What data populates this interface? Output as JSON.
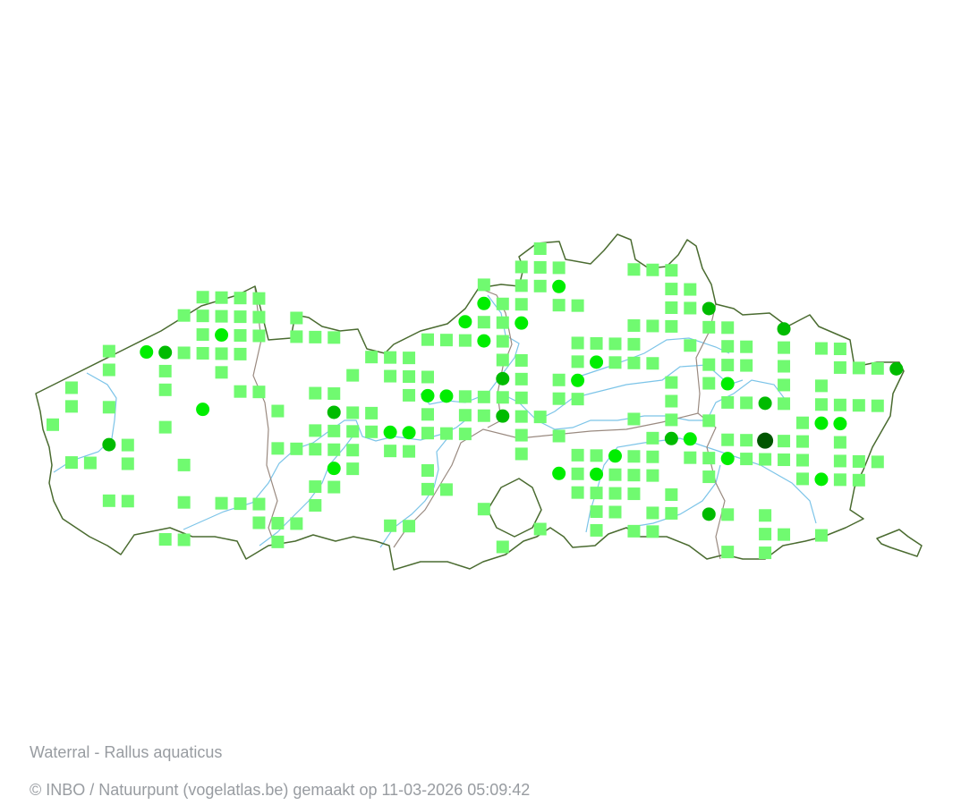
{
  "map": {
    "species_title": "Waterral - Rallus aquaticus",
    "credit": "© INBO / Natuurpunt (vogelatlas.be) gemaakt op 11-03-2026 05:09:42",
    "colors": {
      "square": "#70fa70",
      "circle_light": "#00ee00",
      "circle_mid": "#00bb00",
      "circle_dark": "#005500",
      "outer_border": "#4a6b30",
      "province_border": "#9a8a80",
      "river": "#7cc4e8"
    },
    "grid_observations": [
      {
        "row": 0,
        "square": [
          26
        ]
      },
      {
        "row": 1,
        "square": [
          25,
          26,
          27,
          31,
          32,
          33
        ]
      },
      {
        "row": 2,
        "square": [
          23,
          25,
          26,
          33,
          34
        ],
        "circle_light": [
          27
        ]
      },
      {
        "row": 3,
        "square": [
          8,
          9,
          10,
          11,
          24,
          25,
          27,
          28,
          33,
          34
        ],
        "circle_light": [
          23
        ],
        "circle_mid": [
          35
        ]
      },
      {
        "row": 4,
        "square": [
          7,
          8,
          9,
          10,
          11,
          13,
          23,
          24,
          31,
          32,
          33,
          35,
          36
        ],
        "circle_light": [
          22,
          25
        ],
        "circle_mid": [
          39
        ]
      },
      {
        "row": 5,
        "square": [
          8,
          10,
          11,
          13,
          14,
          15,
          20,
          21,
          22,
          24,
          28,
          29,
          30,
          31,
          34,
          36,
          37,
          39,
          41,
          42
        ],
        "circle_light": [
          9,
          23
        ]
      },
      {
        "row": 6,
        "square": [
          3,
          7,
          8,
          9,
          10,
          17,
          18,
          19,
          24,
          25,
          28,
          30,
          31,
          32,
          35,
          36,
          37,
          39,
          42,
          43,
          44
        ],
        "circle_light": [
          5,
          29
        ],
        "circle_mid": [
          6,
          45
        ]
      },
      {
        "row": 7,
        "square": [
          3,
          6,
          9,
          16,
          18,
          19,
          20,
          25,
          27,
          33,
          35,
          39,
          41
        ],
        "circle_light": [
          28,
          36
        ],
        "circle_mid": [
          24
        ]
      },
      {
        "row": 8,
        "square": [
          1,
          6,
          10,
          11,
          14,
          15,
          19,
          22,
          23,
          24,
          25,
          27,
          28,
          33,
          36,
          37,
          39,
          41,
          42,
          43,
          44
        ],
        "circle_light": [
          20,
          21
        ],
        "circle_mid": [
          38
        ]
      },
      {
        "row": 9,
        "square": [
          1,
          3,
          12,
          16,
          17,
          20,
          22,
          23,
          25,
          26,
          31,
          33,
          35,
          40
        ],
        "circle_light": [
          8,
          41,
          42
        ],
        "circle_mid": [
          15,
          24
        ]
      },
      {
        "row": 10,
        "square": [
          0,
          6,
          14,
          15,
          16,
          17,
          20,
          21,
          22,
          25,
          27,
          32,
          36,
          37,
          39,
          40,
          42
        ],
        "circle_light": [
          18,
          19,
          34
        ],
        "circle_mid": [
          33
        ],
        "circle_dark": [
          38
        ]
      },
      {
        "row": 11,
        "square": [
          4,
          12,
          13,
          14,
          15,
          16,
          18,
          19,
          25,
          28,
          29,
          31,
          32,
          34,
          35,
          37,
          38,
          39,
          40,
          42,
          43,
          44
        ],
        "circle_light": [
          30,
          36
        ],
        "circle_mid": [
          3
        ]
      },
      {
        "row": 12,
        "square": [
          1,
          2,
          4,
          7,
          16,
          20,
          28,
          30,
          31,
          32,
          35,
          40,
          42,
          43
        ],
        "circle_light": [
          15,
          27,
          29,
          41
        ]
      },
      {
        "row": 13,
        "square": [
          14,
          15,
          20,
          21,
          28,
          29,
          30,
          31,
          33
        ]
      },
      {
        "row": 14,
        "square": [
          3,
          4,
          7,
          9,
          10,
          11,
          14,
          23,
          29,
          30,
          32,
          33,
          36,
          38
        ],
        "circle_mid": [
          35
        ]
      },
      {
        "row": 15,
        "square": [
          11,
          12,
          13,
          18,
          19,
          26,
          29,
          31,
          32,
          38,
          39,
          41
        ]
      },
      {
        "row": 16,
        "square": [
          6,
          7,
          12,
          24,
          36,
          38
        ]
      }
    ]
  }
}
